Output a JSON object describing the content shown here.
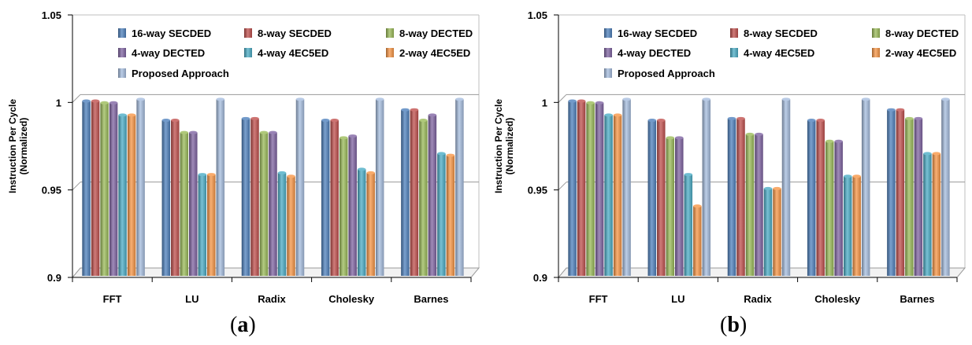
{
  "chart_data": [
    {
      "type": "bar",
      "panel_label": "a",
      "ylabel_line1": "Instruction Per Cycle",
      "ylabel_line2": "(Normalized)",
      "ylim": [
        0.9,
        1.05
      ],
      "yticks": [
        "0.9",
        "0.95",
        "1",
        "1.05"
      ],
      "grid": true,
      "legend_position": "top",
      "categories": [
        "FFT",
        "LU",
        "Radix",
        "Cholesky",
        "Barnes"
      ],
      "series": [
        {
          "name": "16-way SECDED",
          "color": "#4f81bd",
          "values": [
            0.999,
            0.988,
            0.989,
            0.988,
            0.994
          ]
        },
        {
          "name": "8-way SECDED",
          "color": "#c0504d",
          "values": [
            0.999,
            0.988,
            0.989,
            0.988,
            0.994
          ]
        },
        {
          "name": "8-way DECTED",
          "color": "#9bbb59",
          "values": [
            0.998,
            0.981,
            0.981,
            0.978,
            0.988
          ]
        },
        {
          "name": "4-way DECTED",
          "color": "#8064a2",
          "values": [
            0.998,
            0.981,
            0.981,
            0.979,
            0.991
          ]
        },
        {
          "name": "4-way 4EC5ED",
          "color": "#4bacc6",
          "values": [
            0.991,
            0.957,
            0.958,
            0.96,
            0.969
          ]
        },
        {
          "name": "2-way 4EC5ED",
          "color": "#f79646",
          "values": [
            0.991,
            0.957,
            0.956,
            0.958,
            0.968
          ]
        },
        {
          "name": "Proposed Approach",
          "color": "#a6bddf",
          "values": [
            1.0,
            1.0,
            1.0,
            1.0,
            1.0
          ]
        }
      ]
    },
    {
      "type": "bar",
      "panel_label": "b",
      "ylabel_line1": "Instruction Per Cycle",
      "ylabel_line2": "(Normalized)",
      "ylim": [
        0.9,
        1.05
      ],
      "yticks": [
        "0.9",
        "0.95",
        "1",
        "1.05"
      ],
      "grid": true,
      "legend_position": "top",
      "categories": [
        "FFT",
        "LU",
        "Radix",
        "Cholesky",
        "Barnes"
      ],
      "series": [
        {
          "name": "16-way SECDED",
          "color": "#4f81bd",
          "values": [
            0.999,
            0.988,
            0.989,
            0.988,
            0.994
          ]
        },
        {
          "name": "8-way SECDED",
          "color": "#c0504d",
          "values": [
            0.999,
            0.988,
            0.989,
            0.988,
            0.994
          ]
        },
        {
          "name": "8-way DECTED",
          "color": "#9bbb59",
          "values": [
            0.998,
            0.978,
            0.98,
            0.976,
            0.989
          ]
        },
        {
          "name": "4-way DECTED",
          "color": "#8064a2",
          "values": [
            0.998,
            0.978,
            0.98,
            0.976,
            0.989
          ]
        },
        {
          "name": "4-way 4EC5ED",
          "color": "#4bacc6",
          "values": [
            0.991,
            0.957,
            0.949,
            0.956,
            0.969
          ]
        },
        {
          "name": "2-way 4EC5ED",
          "color": "#f79646",
          "values": [
            0.991,
            0.939,
            0.949,
            0.956,
            0.969
          ]
        },
        {
          "name": "Proposed Approach",
          "color": "#a6bddf",
          "values": [
            1.0,
            1.0,
            1.0,
            1.0,
            1.0
          ]
        }
      ]
    }
  ]
}
